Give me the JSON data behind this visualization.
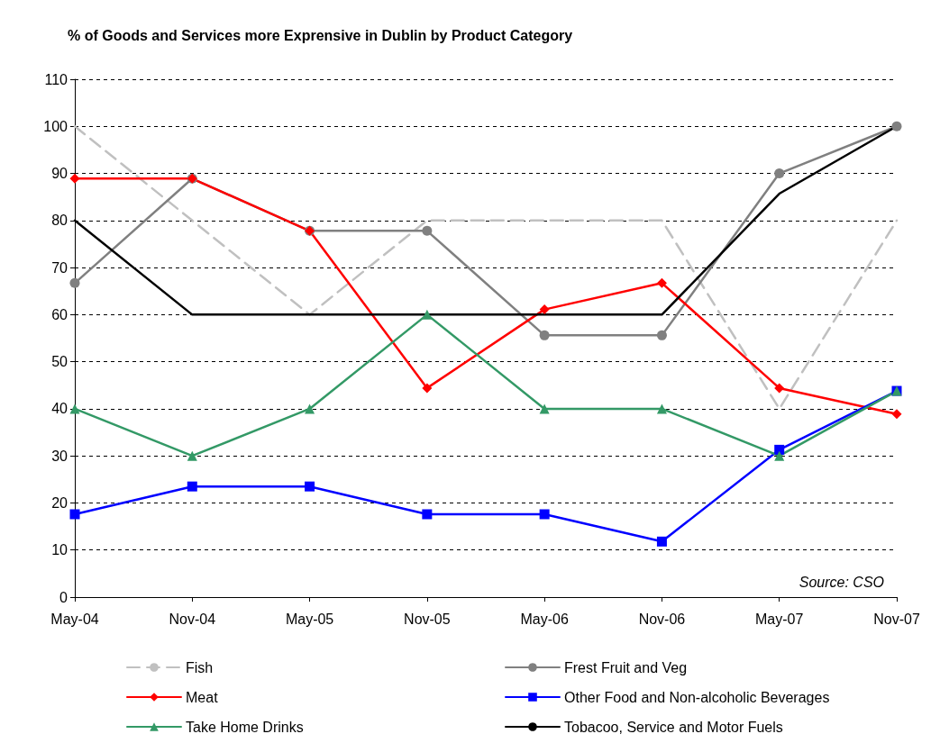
{
  "chart_data": {
    "type": "line",
    "title": "% of Goods and Services more Exprensive in Dublin by Product Category",
    "categories": [
      "May-04",
      "Nov-04",
      "May-05",
      "Nov-05",
      "May-06",
      "Nov-06",
      "May-07",
      "Nov-07"
    ],
    "series": [
      {
        "name": "Fish",
        "color": "#c0c0c0",
        "marker": "none",
        "line_style": "dashed",
        "values": [
          100,
          80,
          60,
          80,
          80,
          80,
          40,
          80
        ]
      },
      {
        "name": "Frest Fruit and Veg",
        "color": "#808080",
        "marker": "circle",
        "line_style": "solid",
        "values": [
          66.7,
          88.9,
          77.8,
          77.8,
          55.6,
          55.6,
          90,
          100
        ]
      },
      {
        "name": "Meat",
        "color": "#ff0000",
        "marker": "diamond",
        "line_style": "solid",
        "values": [
          88.9,
          88.9,
          77.8,
          44.4,
          61.1,
          66.7,
          44.4,
          38.9
        ]
      },
      {
        "name": "Other Food and Non-alcoholic Beverages",
        "color": "#0000ff",
        "marker": "square",
        "line_style": "solid",
        "values": [
          17.6,
          23.5,
          23.5,
          17.6,
          17.6,
          11.8,
          31.3,
          43.8
        ]
      },
      {
        "name": "Take Home Drinks",
        "color": "#339966",
        "marker": "triangle",
        "line_style": "solid",
        "values": [
          40,
          30,
          40,
          60,
          40,
          40,
          30,
          43.8
        ]
      },
      {
        "name": "Tobacoo, Service and Motor Fuels",
        "color": "#000000",
        "marker": "none",
        "line_style": "solid",
        "values": [
          80,
          60,
          60,
          60,
          60,
          60,
          85.7,
          100
        ]
      }
    ],
    "ylim": [
      0,
      110
    ],
    "yticks": [
      0,
      10,
      20,
      30,
      40,
      50,
      60,
      70,
      80,
      90,
      100,
      110
    ],
    "grid": "y",
    "legend": "bottom",
    "annotations": [
      "Source: CSO"
    ]
  }
}
